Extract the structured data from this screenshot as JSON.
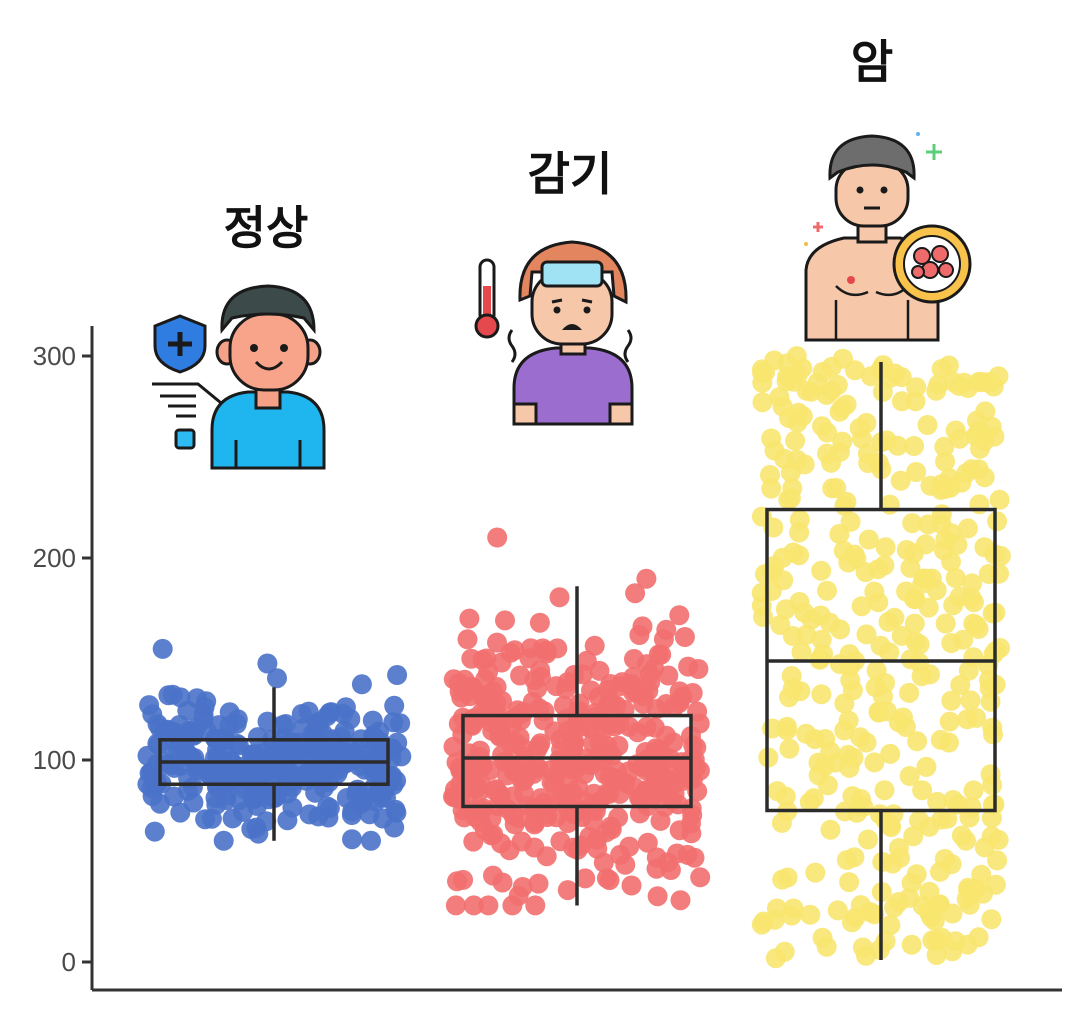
{
  "chart_data": {
    "type": "box-jitter",
    "title": "",
    "xlabel": "",
    "ylabel": "",
    "ylim": [
      0,
      310
    ],
    "y_ticks": [
      0,
      100,
      200,
      300
    ],
    "y_tick_labels": [
      "0",
      "100",
      "200",
      "300"
    ],
    "grid": false,
    "legend": "none",
    "groups": [
      {
        "label": "정상",
        "icon": "healthy-person-icon",
        "color": "#4a72c9",
        "box": {
          "min": 60,
          "q1": 88,
          "median": 99,
          "q3": 110,
          "max": 136
        },
        "point_count": 300,
        "point_range": [
          60,
          155
        ]
      },
      {
        "label": "감기",
        "icon": "cold-fever-person-icon",
        "color": "#f26f6f",
        "box": {
          "min": 28,
          "q1": 77,
          "median": 101,
          "q3": 122,
          "max": 186
        },
        "point_count": 400,
        "point_range": [
          28,
          214
        ]
      },
      {
        "label": "암",
        "icon": "cancer-patient-icon",
        "color": "#f8e66f",
        "box": {
          "min": 1,
          "q1": 75,
          "median": 149,
          "q3": 224,
          "max": 297
        },
        "point_count": 400,
        "point_range": [
          1,
          300
        ]
      }
    ]
  }
}
